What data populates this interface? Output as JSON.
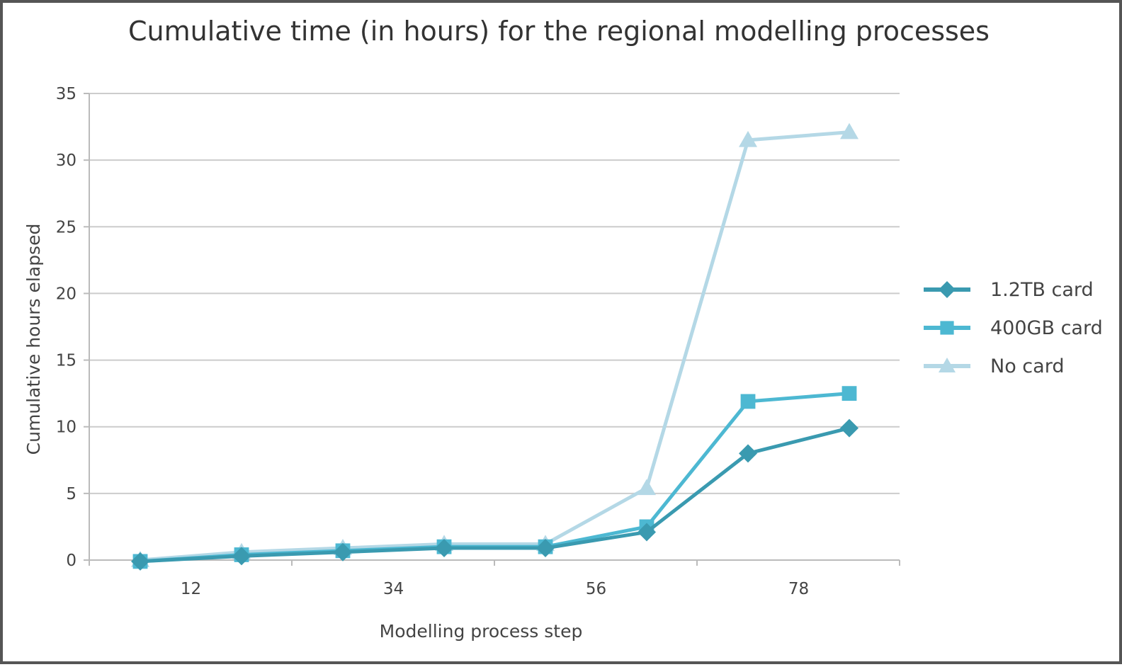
{
  "chart_data": {
    "type": "line",
    "title": "Cumulative time (in hours) for the regional modelling processes",
    "xlabel": "Modelling process step",
    "ylabel": "Cumulative hours elapsed",
    "x_tick_labels": [
      "12",
      "34",
      "56",
      "78"
    ],
    "y_ticks": [
      0,
      5,
      10,
      15,
      20,
      25,
      30,
      35
    ],
    "ylim": [
      0,
      35
    ],
    "grid": "horizontal",
    "legend_position": "right",
    "categories": [
      "1",
      "2",
      "3",
      "4",
      "5",
      "6",
      "7",
      "8"
    ],
    "series": [
      {
        "name": "1.2TB card",
        "marker": "diamond",
        "color": "#3A9AB0",
        "values": [
          -0.1,
          0.3,
          0.6,
          0.9,
          0.9,
          2.1,
          8.0,
          9.9
        ]
      },
      {
        "name": "400GB card",
        "marker": "square",
        "color": "#4DB8D2",
        "values": [
          -0.1,
          0.4,
          0.7,
          1.0,
          1.0,
          2.5,
          11.9,
          12.5
        ]
      },
      {
        "name": "No card",
        "marker": "triangle",
        "color": "#B4D8E6",
        "values": [
          0.0,
          0.6,
          0.9,
          1.2,
          1.2,
          5.4,
          31.5,
          32.1
        ]
      }
    ]
  }
}
